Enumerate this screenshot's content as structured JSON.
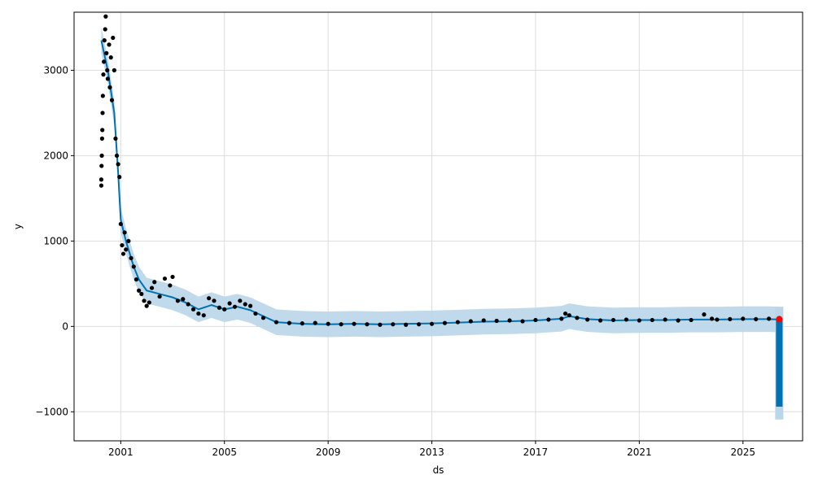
{
  "chart_data": {
    "type": "line",
    "title": "",
    "xlabel": "ds",
    "ylabel": "y",
    "xlim": [
      1999.2,
      2027.3
    ],
    "ylim": [
      -1340,
      3680
    ],
    "x_ticks": [
      {
        "value": 2001,
        "label": "2001"
      },
      {
        "value": 2005,
        "label": "2005"
      },
      {
        "value": 2009,
        "label": "2009"
      },
      {
        "value": 2013,
        "label": "2013"
      },
      {
        "value": 2017,
        "label": "2017"
      },
      {
        "value": 2021,
        "label": "2021"
      },
      {
        "value": 2025,
        "label": "2025"
      }
    ],
    "y_ticks": [
      {
        "value": -1000,
        "label": "−1000"
      },
      {
        "value": 0,
        "label": "0"
      },
      {
        "value": 1000,
        "label": "1000"
      },
      {
        "value": 2000,
        "label": "2000"
      },
      {
        "value": 3000,
        "label": "3000"
      }
    ],
    "grid": true,
    "colors": {
      "observed": "#000000",
      "forecast_line": "#0072B2",
      "uncertainty": "#b9d6ea",
      "highlight": "#ff0000"
    },
    "series": [
      {
        "role": "observed",
        "kind": "scatter",
        "points": [
          [
            2000.25,
            1650
          ],
          [
            2000.25,
            1720
          ],
          [
            2000.26,
            1880
          ],
          [
            2000.27,
            2000
          ],
          [
            2000.28,
            2200
          ],
          [
            2000.29,
            2300
          ],
          [
            2000.3,
            2500
          ],
          [
            2000.31,
            2700
          ],
          [
            2000.33,
            2950
          ],
          [
            2000.35,
            3100
          ],
          [
            2000.37,
            3350
          ],
          [
            2000.4,
            3480
          ],
          [
            2000.42,
            3630
          ],
          [
            2000.45,
            3200
          ],
          [
            2000.48,
            3000
          ],
          [
            2000.5,
            2900
          ],
          [
            2000.55,
            3300
          ],
          [
            2000.58,
            2800
          ],
          [
            2000.62,
            3150
          ],
          [
            2000.66,
            2650
          ],
          [
            2000.7,
            3380
          ],
          [
            2000.75,
            3000
          ],
          [
            2000.8,
            2200
          ],
          [
            2000.85,
            2000
          ],
          [
            2000.9,
            1900
          ],
          [
            2000.95,
            1750
          ],
          [
            2001.0,
            1200
          ],
          [
            2001.05,
            950
          ],
          [
            2001.1,
            850
          ],
          [
            2001.15,
            1100
          ],
          [
            2001.2,
            900
          ],
          [
            2001.3,
            1000
          ],
          [
            2001.4,
            800
          ],
          [
            2001.5,
            700
          ],
          [
            2001.6,
            550
          ],
          [
            2001.7,
            420
          ],
          [
            2001.8,
            380
          ],
          [
            2001.9,
            300
          ],
          [
            2002.0,
            240
          ],
          [
            2002.1,
            280
          ],
          [
            2002.2,
            450
          ],
          [
            2002.3,
            520
          ],
          [
            2002.5,
            350
          ],
          [
            2002.7,
            560
          ],
          [
            2002.9,
            480
          ],
          [
            2003.0,
            580
          ],
          [
            2003.2,
            300
          ],
          [
            2003.4,
            320
          ],
          [
            2003.6,
            260
          ],
          [
            2003.8,
            200
          ],
          [
            2004.0,
            150
          ],
          [
            2004.2,
            130
          ],
          [
            2004.4,
            330
          ],
          [
            2004.6,
            300
          ],
          [
            2004.8,
            220
          ],
          [
            2005.0,
            200
          ],
          [
            2005.2,
            270
          ],
          [
            2005.4,
            230
          ],
          [
            2005.6,
            300
          ],
          [
            2005.8,
            260
          ],
          [
            2006.0,
            240
          ],
          [
            2006.2,
            150
          ],
          [
            2006.5,
            100
          ],
          [
            2007.0,
            50
          ],
          [
            2007.5,
            40
          ],
          [
            2008.0,
            35
          ],
          [
            2008.5,
            40
          ],
          [
            2009.0,
            30
          ],
          [
            2009.5,
            25
          ],
          [
            2010.0,
            30
          ],
          [
            2010.5,
            25
          ],
          [
            2011.0,
            20
          ],
          [
            2011.5,
            25
          ],
          [
            2012.0,
            20
          ],
          [
            2012.5,
            25
          ],
          [
            2013.0,
            30
          ],
          [
            2013.5,
            40
          ],
          [
            2014.0,
            50
          ],
          [
            2014.5,
            60
          ],
          [
            2015.0,
            70
          ],
          [
            2015.5,
            65
          ],
          [
            2016.0,
            70
          ],
          [
            2016.5,
            60
          ],
          [
            2017.0,
            75
          ],
          [
            2017.5,
            80
          ],
          [
            2018.0,
            90
          ],
          [
            2018.15,
            150
          ],
          [
            2018.3,
            130
          ],
          [
            2018.6,
            100
          ],
          [
            2019.0,
            80
          ],
          [
            2019.5,
            70
          ],
          [
            2020.0,
            75
          ],
          [
            2020.5,
            80
          ],
          [
            2021.0,
            70
          ],
          [
            2021.5,
            75
          ],
          [
            2022.0,
            80
          ],
          [
            2022.5,
            70
          ],
          [
            2023.0,
            75
          ],
          [
            2023.5,
            140
          ],
          [
            2023.8,
            90
          ],
          [
            2024.0,
            80
          ],
          [
            2024.5,
            85
          ],
          [
            2025.0,
            90
          ],
          [
            2025.5,
            85
          ],
          [
            2026.0,
            90
          ],
          [
            2026.4,
            85
          ]
        ]
      },
      {
        "role": "forecast",
        "kind": "line",
        "points": [
          [
            2000.25,
            3350
          ],
          [
            2000.5,
            3000
          ],
          [
            2000.75,
            2500
          ],
          [
            2000.9,
            1800
          ],
          [
            2001.0,
            1250
          ],
          [
            2001.2,
            1000
          ],
          [
            2001.5,
            700
          ],
          [
            2001.7,
            550
          ],
          [
            2002.0,
            420
          ],
          [
            2002.5,
            380
          ],
          [
            2003.0,
            340
          ],
          [
            2003.5,
            280
          ],
          [
            2004.0,
            200
          ],
          [
            2004.5,
            250
          ],
          [
            2005.0,
            200
          ],
          [
            2005.5,
            230
          ],
          [
            2006.0,
            190
          ],
          [
            2006.5,
            120
          ],
          [
            2007.0,
            50
          ],
          [
            2008.0,
            30
          ],
          [
            2009.0,
            25
          ],
          [
            2010.0,
            30
          ],
          [
            2011.0,
            25
          ],
          [
            2012.0,
            30
          ],
          [
            2013.0,
            35
          ],
          [
            2014.0,
            45
          ],
          [
            2015.0,
            55
          ],
          [
            2016.0,
            60
          ],
          [
            2017.0,
            70
          ],
          [
            2018.0,
            90
          ],
          [
            2018.3,
            120
          ],
          [
            2019.0,
            85
          ],
          [
            2020.0,
            70
          ],
          [
            2021.0,
            75
          ],
          [
            2022.0,
            75
          ],
          [
            2023.0,
            80
          ],
          [
            2024.0,
            80
          ],
          [
            2025.0,
            85
          ],
          [
            2026.0,
            85
          ],
          [
            2026.4,
            80
          ]
        ],
        "spike": {
          "x": 2026.4,
          "from": 80,
          "to": -940
        }
      },
      {
        "role": "uncertainty",
        "kind": "band",
        "half_width": 150
      },
      {
        "role": "highlight",
        "kind": "point",
        "points": [
          [
            2026.4,
            85
          ]
        ]
      }
    ]
  }
}
